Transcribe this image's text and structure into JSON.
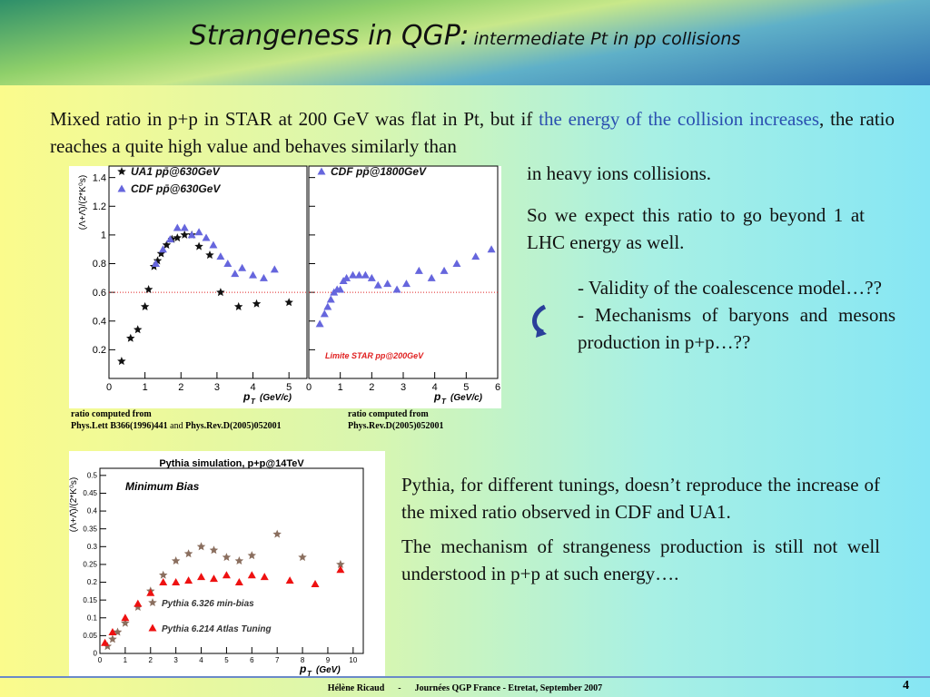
{
  "header": {
    "title": "Strangeness in QGP:",
    "subtitle": "intermediate Pt in pp collisions"
  },
  "intro": {
    "parts": [
      "Mixed ratio in p+p in STAR at 200 GeV was flat in Pt, but if ",
      "the energy of the collision increases",
      ", the ratio reaches a quite high value and behaves similarly than"
    ],
    "tail": "in heavy ions collisions."
  },
  "expect": "So we expect this ratio to go beyond 1 at LHC energy as well.",
  "bullets": [
    "- Validity of the coalescence model…??",
    "- Mechanisms of baryons and mesons production in p+p…??"
  ],
  "conclusions": [
    "Pythia, for different tunings, doesn’t reproduce the increase of the mixed ratio observed in CDF and UA1.",
    "The mechanism of strangeness production is still not well understood in p+p at such energy…."
  ],
  "captions": [
    {
      "line1": "ratio computed from",
      "refs": [
        "Phys.Lett B366(1996)441",
        "and",
        "Phys.Rev.D(2005)052001"
      ]
    },
    {
      "line1": "ratio computed from",
      "refs": [
        "Phys.Rev.D(2005)052001"
      ]
    }
  ],
  "plot1": {
    "ylabel": "(Λ+Λ̄)/(2*K⁰s)",
    "xlabel": "p",
    "xlabel_sub": "T",
    "xunit": "(GeV/c)",
    "ylim": [
      0,
      1.48
    ],
    "yticks": [
      0.2,
      0.4,
      0.6,
      0.8,
      1,
      1.2,
      1.4
    ],
    "reference": 0.6,
    "panels": [
      {
        "xlim": [
          0,
          5.5
        ],
        "xticks": [
          0,
          1,
          2,
          3,
          4,
          5
        ],
        "series": [
          {
            "name": "UA1 pp̄@630GeV",
            "color": "#111111",
            "marker": "star",
            "x": [
              0.35,
              0.6,
              0.8,
              1.0,
              1.1,
              1.25,
              1.35,
              1.45,
              1.6,
              1.75,
              1.9,
              2.1,
              2.3,
              2.5,
              2.8,
              3.1,
              3.6,
              4.1,
              5.0
            ],
            "y": [
              0.12,
              0.28,
              0.34,
              0.5,
              0.62,
              0.78,
              0.82,
              0.87,
              0.93,
              0.97,
              0.98,
              1.0,
              1.0,
              0.92,
              0.86,
              0.6,
              0.5,
              0.52,
              0.53
            ]
          },
          {
            "name": "CDF pp̄@630GeV",
            "color": "#6666dd",
            "marker": "triangle",
            "x": [
              1.3,
              1.5,
              1.7,
              1.9,
              2.1,
              2.3,
              2.5,
              2.7,
              2.9,
              3.1,
              3.3,
              3.5,
              3.7,
              4.0,
              4.3,
              4.6
            ],
            "y": [
              0.8,
              0.9,
              0.97,
              1.05,
              1.05,
              1.0,
              1.02,
              0.98,
              0.93,
              0.85,
              0.8,
              0.73,
              0.77,
              0.72,
              0.7,
              0.76
            ]
          }
        ]
      },
      {
        "xlim": [
          0,
          6
        ],
        "xticks": [
          0,
          1,
          2,
          3,
          4,
          5,
          6
        ],
        "note": "Limite STAR pp@200GeV",
        "series": [
          {
            "name": "CDF pp̄@1800GeV",
            "color": "#6666dd",
            "marker": "triangle",
            "x": [
              0.35,
              0.5,
              0.6,
              0.7,
              0.8,
              0.9,
              1.0,
              1.1,
              1.2,
              1.4,
              1.6,
              1.8,
              2.0,
              2.2,
              2.5,
              2.8,
              3.1,
              3.5,
              3.9,
              4.3,
              4.7,
              5.3,
              5.8
            ],
            "y": [
              0.38,
              0.45,
              0.5,
              0.55,
              0.6,
              0.62,
              0.62,
              0.68,
              0.7,
              0.72,
              0.72,
              0.72,
              0.7,
              0.65,
              0.66,
              0.62,
              0.66,
              0.75,
              0.7,
              0.75,
              0.8,
              0.85,
              0.9
            ]
          }
        ]
      }
    ]
  },
  "plot2": {
    "title": "Pythia simulation, p+p@14TeV",
    "label": "Minimum Bias",
    "ylabel": "(Λ+Λ̄)/(2*K⁰s)",
    "xlabel": "p",
    "xlabel_sub": "T",
    "xunit": "(GeV)",
    "ylim": [
      0,
      0.52
    ],
    "yticks": [
      0,
      0.05,
      0.1,
      0.15,
      0.2,
      0.25,
      0.3,
      0.35,
      0.4,
      0.45,
      0.5
    ],
    "panels": [
      {
        "xlim": [
          0,
          10.4
        ],
        "xticks": [
          0,
          1,
          2,
          3,
          4,
          5,
          6,
          7,
          8,
          9,
          10
        ],
        "legend_bottom": true,
        "series": [
          {
            "name": "Pythia 6.326 min-bias",
            "color": "#8a6e5e",
            "marker": "star",
            "x": [
              0.3,
              0.5,
              0.7,
              1.0,
              1.5,
              2.0,
              2.5,
              3.0,
              3.5,
              4.0,
              4.5,
              5.0,
              5.5,
              6.0,
              7.0,
              8.0,
              9.5
            ],
            "y": [
              0.02,
              0.04,
              0.06,
              0.085,
              0.13,
              0.175,
              0.22,
              0.26,
              0.28,
              0.3,
              0.29,
              0.27,
              0.26,
              0.275,
              0.335,
              0.27,
              0.25
            ]
          },
          {
            "name": "Pythia 6.214 Atlas Tuning",
            "color": "#ee1111",
            "marker": "triangle",
            "x": [
              0.2,
              0.5,
              1.0,
              1.5,
              2.0,
              2.5,
              3.0,
              3.5,
              4.0,
              4.5,
              5.0,
              5.5,
              6.0,
              6.5,
              7.5,
              8.5,
              9.5
            ],
            "y": [
              0.03,
              0.06,
              0.1,
              0.14,
              0.17,
              0.2,
              0.2,
              0.205,
              0.215,
              0.21,
              0.22,
              0.2,
              0.22,
              0.215,
              0.205,
              0.195,
              0.235
            ]
          }
        ]
      }
    ]
  },
  "footer": {
    "author": "Hélène Ricaud",
    "sep": "-",
    "event": "Journées QGP France - Etretat, September 2007",
    "page": "4"
  }
}
